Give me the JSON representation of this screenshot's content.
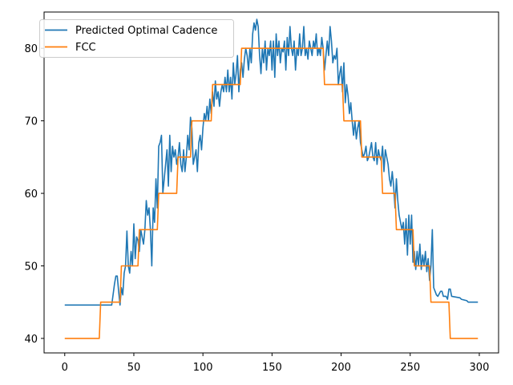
{
  "chart_data": {
    "type": "line",
    "title": "",
    "xlabel": "",
    "ylabel": "",
    "xlim": [
      -14.95,
      313.95
    ],
    "ylim": [
      38.0,
      85.0
    ],
    "x_ticks": [
      0,
      50,
      100,
      150,
      200,
      250,
      300
    ],
    "y_ticks": [
      40,
      50,
      60,
      70,
      80
    ],
    "x_tick_labels": [
      "0",
      "50",
      "100",
      "150",
      "200",
      "250",
      "300"
    ],
    "y_tick_labels": [
      "40",
      "50",
      "60",
      "70",
      "80"
    ],
    "grid": false,
    "legend_position": "top-left",
    "series": [
      {
        "name": "Predicted Optimal Cadence",
        "color": "#1f77b4",
        "points": [
          [
            0,
            44.6
          ],
          [
            34,
            44.6
          ],
          [
            36,
            47.5
          ],
          [
            37,
            48.6
          ],
          [
            38,
            48.6
          ],
          [
            39,
            46.5
          ],
          [
            40,
            44.6
          ],
          [
            41,
            47
          ],
          [
            42,
            46
          ],
          [
            43,
            49
          ],
          [
            44,
            50
          ],
          [
            45,
            54.8
          ],
          [
            46,
            50
          ],
          [
            47,
            49
          ],
          [
            48,
            52
          ],
          [
            49,
            50
          ],
          [
            50,
            55.8
          ],
          [
            51,
            51
          ],
          [
            52,
            54
          ],
          [
            53,
            53.5
          ],
          [
            54,
            52
          ],
          [
            55,
            55
          ],
          [
            56,
            54
          ],
          [
            57,
            53
          ],
          [
            58,
            55
          ],
          [
            59,
            59
          ],
          [
            60,
            57
          ],
          [
            61,
            58
          ],
          [
            62,
            55
          ],
          [
            63,
            50
          ],
          [
            64,
            58
          ],
          [
            65,
            56
          ],
          [
            66,
            62
          ],
          [
            67,
            58
          ],
          [
            68,
            66.5
          ],
          [
            69,
            67
          ],
          [
            70,
            68
          ],
          [
            71,
            60
          ],
          [
            72,
            62
          ],
          [
            73,
            64
          ],
          [
            74,
            66
          ],
          [
            75,
            61
          ],
          [
            76,
            68
          ],
          [
            77,
            63
          ],
          [
            78,
            66.5
          ],
          [
            79,
            65
          ],
          [
            80,
            66
          ],
          [
            81,
            64
          ],
          [
            82,
            65
          ],
          [
            83,
            67
          ],
          [
            84,
            64
          ],
          [
            85,
            63
          ],
          [
            86,
            66
          ],
          [
            87,
            63
          ],
          [
            88,
            65
          ],
          [
            89,
            68
          ],
          [
            90,
            66
          ],
          [
            91,
            70.5
          ],
          [
            92,
            69
          ],
          [
            93,
            64
          ],
          [
            94,
            65
          ],
          [
            95,
            66
          ],
          [
            96,
            63
          ],
          [
            97,
            67
          ],
          [
            98,
            68
          ],
          [
            99,
            66
          ],
          [
            100,
            69
          ],
          [
            101,
            71
          ],
          [
            102,
            70
          ],
          [
            103,
            72
          ],
          [
            104,
            70
          ],
          [
            105,
            73
          ],
          [
            106,
            71
          ],
          [
            107,
            74
          ],
          [
            108,
            72
          ],
          [
            109,
            75.5
          ],
          [
            110,
            73
          ],
          [
            111,
            74
          ],
          [
            112,
            72
          ],
          [
            113,
            74
          ],
          [
            114,
            75
          ],
          [
            115,
            74
          ],
          [
            116,
            76
          ],
          [
            117,
            74
          ],
          [
            118,
            77
          ],
          [
            119,
            74
          ],
          [
            120,
            76
          ],
          [
            121,
            73
          ],
          [
            122,
            78
          ],
          [
            123,
            75
          ],
          [
            124,
            76.5
          ],
          [
            125,
            79
          ],
          [
            126,
            74
          ],
          [
            127,
            77
          ],
          [
            128,
            78
          ],
          [
            129,
            76
          ],
          [
            130,
            78.5
          ],
          [
            131,
            80
          ],
          [
            132,
            79
          ],
          [
            133,
            77
          ],
          [
            134,
            80
          ],
          [
            135,
            78
          ],
          [
            136,
            82
          ],
          [
            137,
            83.5
          ],
          [
            138,
            82.5
          ],
          [
            139,
            84
          ],
          [
            140,
            83
          ],
          [
            141,
            79
          ],
          [
            142,
            76.5
          ],
          [
            143,
            80
          ],
          [
            144,
            78
          ],
          [
            145,
            81
          ],
          [
            146,
            77
          ],
          [
            147,
            80
          ],
          [
            148,
            79
          ],
          [
            149,
            81
          ],
          [
            150,
            77
          ],
          [
            151,
            81
          ],
          [
            152,
            76
          ],
          [
            153,
            82
          ],
          [
            154,
            79
          ],
          [
            155,
            81
          ],
          [
            156,
            78
          ],
          [
            157,
            80
          ],
          [
            158,
            79.5
          ],
          [
            159,
            81
          ],
          [
            160,
            77
          ],
          [
            161,
            81.5
          ],
          [
            162,
            79
          ],
          [
            163,
            83
          ],
          [
            164,
            80
          ],
          [
            165,
            79
          ],
          [
            166,
            81
          ],
          [
            167,
            77
          ],
          [
            168,
            80
          ],
          [
            169,
            79
          ],
          [
            170,
            82
          ],
          [
            171,
            79
          ],
          [
            172,
            80
          ],
          [
            173,
            83
          ],
          [
            174,
            79
          ],
          [
            175,
            80
          ],
          [
            176,
            78.5
          ],
          [
            177,
            81
          ],
          [
            178,
            80
          ],
          [
            179,
            79
          ],
          [
            180,
            81
          ],
          [
            181,
            80
          ],
          [
            182,
            82
          ],
          [
            183,
            79
          ],
          [
            184,
            80
          ],
          [
            185,
            79
          ],
          [
            186,
            81.5
          ],
          [
            187,
            80
          ],
          [
            188,
            77
          ],
          [
            189,
            79
          ],
          [
            190,
            81
          ],
          [
            191,
            79
          ],
          [
            192,
            83
          ],
          [
            193,
            81
          ],
          [
            194,
            78
          ],
          [
            195,
            79
          ],
          [
            196,
            78.5
          ],
          [
            197,
            80
          ],
          [
            198,
            75
          ],
          [
            199,
            76.5
          ],
          [
            200,
            77.5
          ],
          [
            201,
            74
          ],
          [
            202,
            78
          ],
          [
            203,
            72.5
          ],
          [
            204,
            75
          ],
          [
            205,
            73.5
          ],
          [
            206,
            71
          ],
          [
            207,
            72.5
          ],
          [
            208,
            70
          ],
          [
            209,
            68
          ],
          [
            210,
            70
          ],
          [
            211,
            67.5
          ],
          [
            212,
            69
          ],
          [
            213,
            70
          ],
          [
            214,
            67
          ],
          [
            215,
            66
          ],
          [
            216,
            65
          ],
          [
            217,
            65.5
          ],
          [
            218,
            66.5
          ],
          [
            219,
            64.5
          ],
          [
            220,
            65
          ],
          [
            221,
            66
          ],
          [
            222,
            67
          ],
          [
            223,
            65
          ],
          [
            224,
            64.5
          ],
          [
            225,
            67
          ],
          [
            226,
            64
          ],
          [
            227,
            66
          ],
          [
            228,
            65
          ],
          [
            229,
            64.5
          ],
          [
            230,
            66.5
          ],
          [
            231,
            63
          ],
          [
            232,
            66
          ],
          [
            233,
            65
          ],
          [
            234,
            64
          ],
          [
            235,
            62
          ],
          [
            236,
            61
          ],
          [
            237,
            63
          ],
          [
            238,
            61
          ],
          [
            239,
            58
          ],
          [
            240,
            62
          ],
          [
            241,
            59
          ],
          [
            242,
            57
          ],
          [
            243,
            56
          ],
          [
            244,
            55
          ],
          [
            245,
            56
          ],
          [
            246,
            53
          ],
          [
            247,
            56.5
          ],
          [
            248,
            51.5
          ],
          [
            249,
            57
          ],
          [
            250,
            53
          ],
          [
            251,
            57
          ],
          [
            252,
            50.5
          ],
          [
            253,
            52
          ],
          [
            254,
            49.5
          ],
          [
            255,
            52
          ],
          [
            256,
            50
          ],
          [
            257,
            53
          ],
          [
            258,
            49.5
          ],
          [
            259,
            51.5
          ],
          [
            260,
            50
          ],
          [
            261,
            52
          ],
          [
            262,
            49.2
          ],
          [
            263,
            51
          ],
          [
            264,
            48
          ],
          [
            265,
            50
          ],
          [
            266,
            55
          ],
          [
            267,
            47
          ],
          [
            268,
            46.5
          ],
          [
            269,
            46
          ],
          [
            270,
            45.8
          ],
          [
            272,
            46.5
          ],
          [
            273,
            46.5
          ],
          [
            274,
            45.8
          ],
          [
            276,
            45.8
          ],
          [
            277,
            45.4
          ],
          [
            278,
            46.8
          ],
          [
            279,
            46.8
          ],
          [
            280,
            45.8
          ],
          [
            286,
            45.6
          ],
          [
            287,
            45.4
          ],
          [
            291,
            45.2
          ],
          [
            292,
            45
          ],
          [
            299,
            45
          ]
        ]
      },
      {
        "name": "FCC",
        "color": "#ff7f0e",
        "points": [
          [
            0,
            40
          ],
          [
            25,
            40
          ],
          [
            26,
            45
          ],
          [
            40,
            45
          ],
          [
            41,
            50
          ],
          [
            53,
            50
          ],
          [
            54,
            55
          ],
          [
            67,
            55
          ],
          [
            68,
            60
          ],
          [
            81,
            60
          ],
          [
            82,
            65
          ],
          [
            91,
            65
          ],
          [
            92,
            70
          ],
          [
            106,
            70
          ],
          [
            107,
            75
          ],
          [
            127,
            75
          ],
          [
            128,
            80
          ],
          [
            187,
            80
          ],
          [
            188,
            75
          ],
          [
            201,
            75
          ],
          [
            202,
            70
          ],
          [
            214,
            70
          ],
          [
            215,
            65
          ],
          [
            229,
            65
          ],
          [
            230,
            60
          ],
          [
            239,
            60
          ],
          [
            240,
            55
          ],
          [
            252,
            55
          ],
          [
            253,
            50
          ],
          [
            264,
            50
          ],
          [
            265,
            45
          ],
          [
            278,
            45
          ],
          [
            279,
            40
          ],
          [
            299,
            40
          ]
        ]
      }
    ]
  }
}
